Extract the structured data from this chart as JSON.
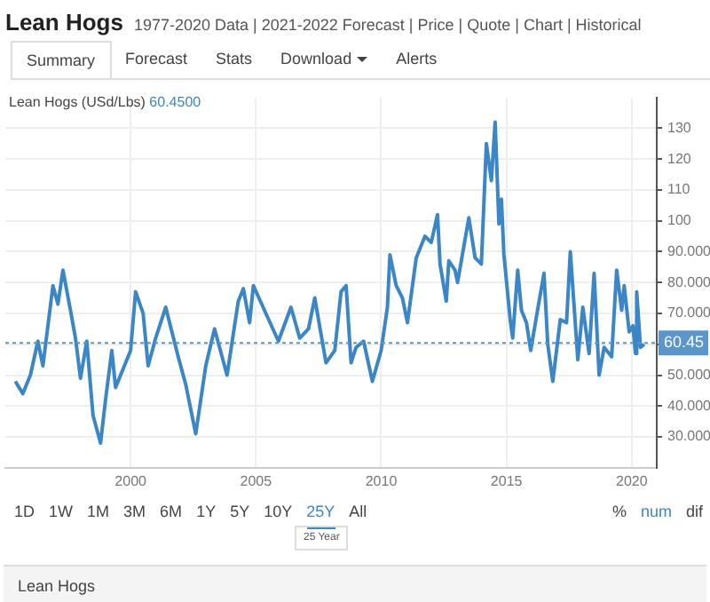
{
  "chart_data": {
    "type": "line",
    "title": "Lean Hogs",
    "subtitle": "1977-2020 Data | 2021-2022 Forecast | Price | Quote | Chart | Historical",
    "annotations": [
      "Lean Hogs (USd/Lbs)",
      "60.4500",
      "Summary",
      "Forecast",
      "Stats",
      "Download",
      "Alerts",
      "1D",
      "1W",
      "1M",
      "3M",
      "6M",
      "1Y",
      "5Y",
      "10Y",
      "25Y",
      "All",
      "%",
      "num",
      "dif",
      "25 Year",
      "Lean Hogs"
    ],
    "x": [
      1995.4,
      1995.7,
      1996.0,
      1996.3,
      1996.5,
      1996.9,
      1997.1,
      1997.3,
      1997.6,
      1997.8,
      1998.0,
      1998.25,
      1998.5,
      1998.8,
      1999.0,
      1999.25,
      1999.4,
      2000.0,
      2000.2,
      2000.5,
      2000.7,
      2001.0,
      2001.4,
      2001.9,
      2002.2,
      2002.6,
      2003.0,
      2003.35,
      2003.85,
      2004.3,
      2004.5,
      2004.75,
      2004.9,
      2005.4,
      2005.9,
      2006.4,
      2006.75,
      2007.1,
      2007.35,
      2007.8,
      2008.15,
      2008.4,
      2008.6,
      2008.8,
      2009.0,
      2009.3,
      2009.65,
      2010.0,
      2010.25,
      2010.35,
      2010.6,
      2010.85,
      2011.05,
      2011.4,
      2011.75,
      2012.0,
      2012.25,
      2012.35,
      2012.6,
      2012.7,
      2012.95,
      2013.05,
      2013.5,
      2013.75,
      2014.0,
      2014.2,
      2014.4,
      2014.55,
      2014.7,
      2014.8,
      2014.9,
      2015.15,
      2015.25,
      2015.45,
      2015.6,
      2015.8,
      2015.97,
      2016.2,
      2016.5,
      2016.65,
      2016.85,
      2017.15,
      2017.4,
      2017.55,
      2017.85,
      2018.05,
      2018.3,
      2018.5,
      2018.7,
      2018.9,
      2019.2,
      2019.4,
      2019.6,
      2019.7,
      2019.9,
      2020.05,
      2020.15,
      2020.2,
      2020.35,
      2020.5
    ],
    "series": [
      {
        "color": "#3b86c6",
        "values": [
          48,
          44,
          50,
          61,
          53,
          79,
          73,
          84,
          71,
          62,
          49,
          61,
          37,
          28,
          42,
          58,
          46,
          58,
          77,
          70,
          53,
          62,
          72,
          56,
          47,
          31,
          53,
          65,
          50,
          74,
          78,
          67,
          79,
          70,
          61,
          72,
          62,
          65,
          75,
          54,
          58,
          77,
          79,
          54,
          59,
          61,
          48,
          58,
          72,
          89,
          79,
          75,
          67,
          88,
          95,
          93,
          102,
          86,
          74,
          87,
          84,
          80,
          101,
          88,
          86,
          125,
          113,
          132,
          99,
          107,
          89,
          68,
          62,
          84,
          71,
          67,
          58,
          69,
          83,
          60,
          48,
          68,
          67,
          90,
          55,
          72,
          57,
          83,
          50,
          59,
          56,
          84,
          71,
          79,
          64,
          66,
          57,
          77,
          59,
          60
        ]
      }
    ],
    "xlim": [
      1995,
      2021
    ],
    "xticks": [
      2000,
      2005,
      2010,
      2015,
      2020
    ],
    "ylim": [
      20,
      140
    ],
    "yticks": [
      {
        "value": 30,
        "label": "30.000"
      },
      {
        "value": 40,
        "label": "40.000"
      },
      {
        "value": 50,
        "label": "50.000"
      },
      {
        "value": 60,
        "label": null
      },
      {
        "value": 70,
        "label": "70.000"
      },
      {
        "value": 80,
        "label": "80.000"
      },
      {
        "value": 90,
        "label": "90.000"
      },
      100,
      110,
      120,
      130
    ],
    "ref_lines": [
      {
        "axis": "y",
        "value": 60.45,
        "label": "60.45",
        "color": "#5a96cc",
        "line_style": "dotted"
      }
    ],
    "grid": true,
    "legend": false,
    "marker": "none",
    "line_style": "solid"
  }
}
